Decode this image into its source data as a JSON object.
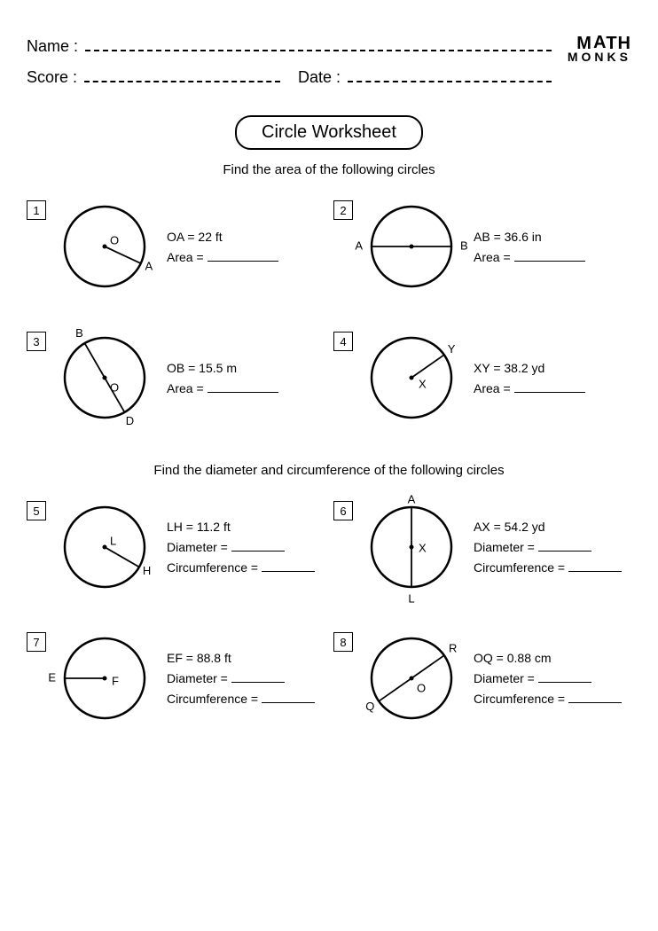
{
  "header": {
    "name_label": "Name :",
    "score_label": "Score :",
    "date_label": "Date :",
    "logo_line1_a": "M",
    "logo_line1_b": "A",
    "logo_line1_c": "TH",
    "logo_line2": "MONKS"
  },
  "title": "Circle Worksheet",
  "section1_instruction": "Find the area of the following circles",
  "section2_instruction": "Find the diameter and circumference of the following circles",
  "colors": {
    "stroke": "#000000",
    "fill": "#ffffff",
    "text": "#000000"
  },
  "diagram_style": {
    "circle_stroke_width": 2.5,
    "line_stroke_width": 1.8,
    "dot_radius": 2.5,
    "label_font_size": 13
  },
  "problems": [
    {
      "num": "1",
      "type": "radius",
      "center_label": "O",
      "end_label": "A",
      "angle_deg": 115,
      "given": "OA = 22 ft",
      "answers": [
        {
          "label": "Area ="
        }
      ]
    },
    {
      "num": "2",
      "type": "diameter_horiz",
      "left_label": "A",
      "right_label": "B",
      "given": "AB = 36.6 in",
      "answers": [
        {
          "label": "Area ="
        }
      ]
    },
    {
      "num": "3",
      "type": "diameter_diag",
      "center_label": "O",
      "p1_label": "D",
      "p2_label": "B",
      "angle_deg": 150,
      "given": "OB = 15.5 m",
      "answers": [
        {
          "label": "Area ="
        }
      ]
    },
    {
      "num": "4",
      "type": "radius",
      "center_label": "X",
      "end_label": "Y",
      "angle_deg": 55,
      "given": "XY = 38.2 yd",
      "answers": [
        {
          "label": "Area ="
        }
      ]
    },
    {
      "num": "5",
      "type": "radius",
      "center_label": "L",
      "end_label": "H",
      "angle_deg": 120,
      "given": "LH = 11.2 ft",
      "answers": [
        {
          "label": "Diameter ="
        },
        {
          "label": "Circumference  ="
        }
      ]
    },
    {
      "num": "6",
      "type": "diameter_vert",
      "center_label": "X",
      "top_label": "A",
      "bottom_label": "L",
      "given": "AX = 54.2 yd",
      "answers": [
        {
          "label": "Diameter ="
        },
        {
          "label": "Circumference  ="
        }
      ]
    },
    {
      "num": "7",
      "type": "radius_left",
      "center_label": "F",
      "end_label": "E",
      "given": "EF =  88.8 ft",
      "answers": [
        {
          "label": "Diameter ="
        },
        {
          "label": "Circumference  ="
        }
      ]
    },
    {
      "num": "8",
      "type": "diameter_diag",
      "center_label": "O",
      "p1_label": "R",
      "p2_label": "Q",
      "angle_deg": 55,
      "given": "OQ = 0.88 cm",
      "answers": [
        {
          "label": "Diameter ="
        },
        {
          "label": "Circumference  ="
        }
      ]
    }
  ]
}
